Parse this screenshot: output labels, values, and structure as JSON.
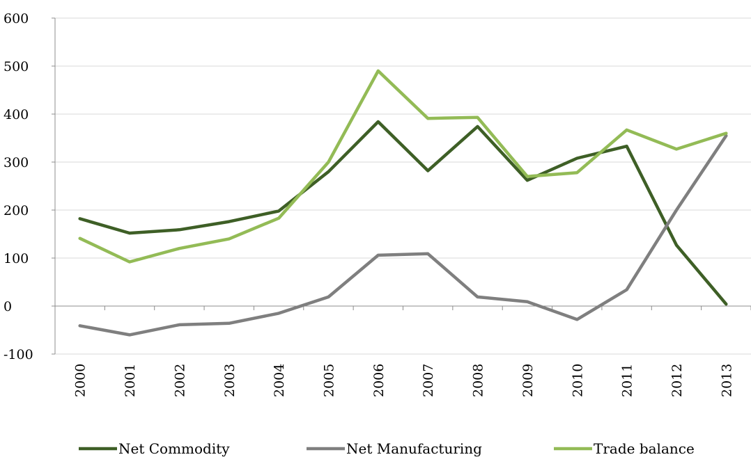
{
  "chart_data": {
    "type": "line",
    "title": "",
    "xlabel": "",
    "ylabel": "",
    "ylim": [
      -100,
      600
    ],
    "yticks": [
      -100,
      0,
      100,
      200,
      300,
      400,
      500,
      600
    ],
    "grid": "horizontal",
    "legend_position": "bottom",
    "categories": [
      "2000",
      "2001",
      "2002",
      "2003",
      "2004",
      "2005",
      "2006",
      "2007",
      "2008",
      "2009",
      "2010",
      "2011",
      "2012",
      "2013"
    ],
    "series": [
      {
        "name": "Net Commodity",
        "color": "#3e5f26",
        "values": [
          182,
          152,
          159,
          176,
          198,
          280,
          384,
          282,
          374,
          262,
          308,
          333,
          127,
          4
        ]
      },
      {
        "name": "Net Manufacturing",
        "color": "#7f7f7f",
        "values": [
          -41,
          -60,
          -39,
          -36,
          -15,
          19,
          106,
          109,
          19,
          9,
          -28,
          34,
          200,
          355
        ]
      },
      {
        "name": "Trade balance",
        "color": "#93bb56",
        "values": [
          141,
          92,
          120,
          140,
          183,
          300,
          490,
          391,
          393,
          270,
          278,
          367,
          327,
          360
        ]
      }
    ]
  }
}
